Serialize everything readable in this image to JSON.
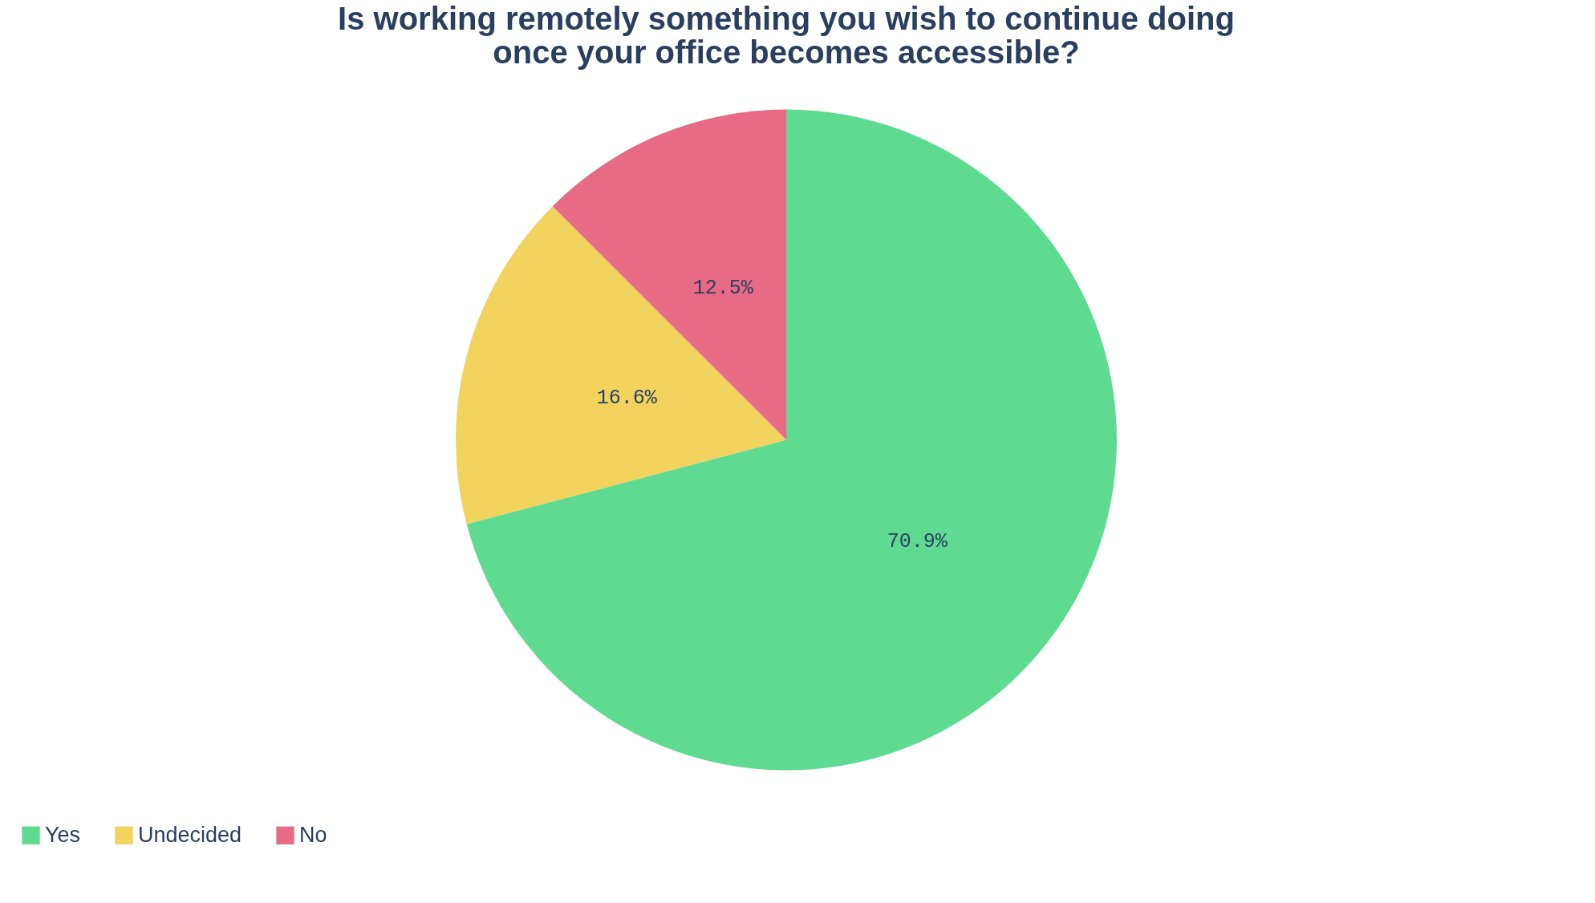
{
  "chart_data": {
    "type": "pie",
    "title": "Is working remotely something you wish to continue doing once your office becomes accessible?",
    "categories": [
      "Yes",
      "Undecided",
      "No"
    ],
    "values": [
      70.9,
      16.6,
      12.5
    ],
    "colors": [
      "#5fdb91",
      "#f2d35e",
      "#e76a86"
    ],
    "value_labels": [
      "70.9%",
      "16.6%",
      "12.5%"
    ],
    "legend": "bottom"
  }
}
